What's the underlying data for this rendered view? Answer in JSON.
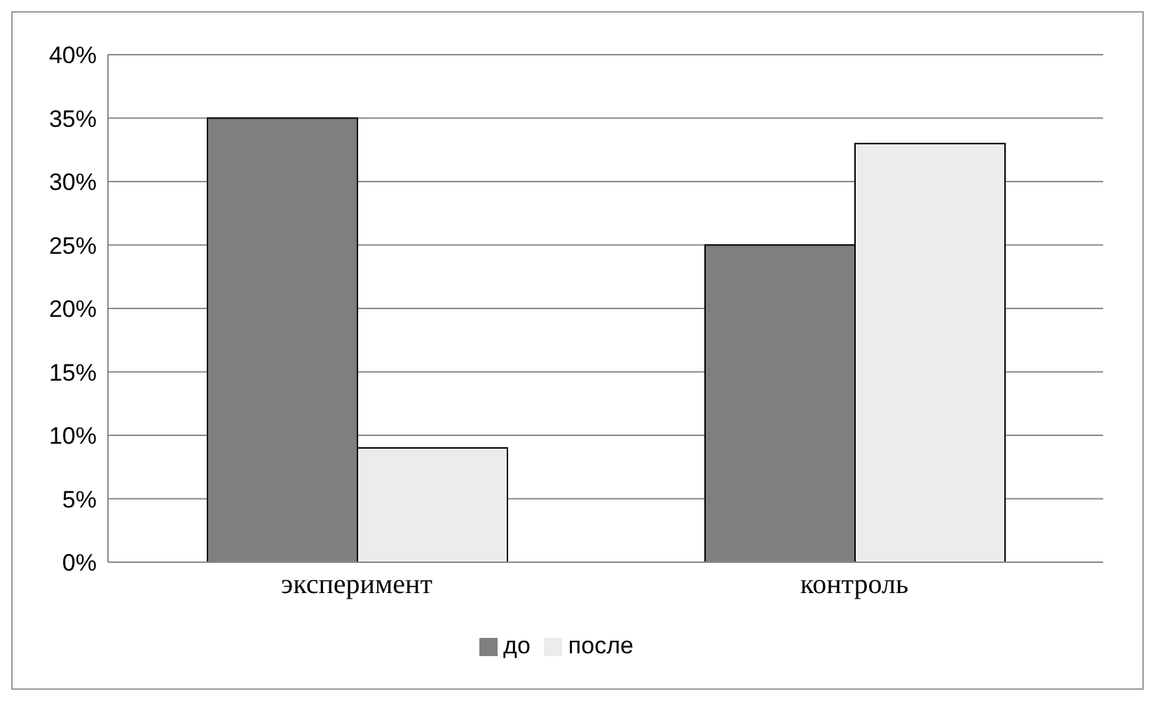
{
  "chart_data": {
    "type": "bar",
    "categories": [
      "эксперимент",
      "контроль"
    ],
    "series": [
      {
        "name": "до",
        "color": "#7f7f7f",
        "values": [
          35,
          25
        ]
      },
      {
        "name": "после",
        "color": "#ececec",
        "values": [
          9,
          33
        ]
      }
    ],
    "ylim": [
      0,
      40
    ],
    "yticks": [
      {
        "value": 0,
        "label": "0%"
      },
      {
        "value": 5,
        "label": "5%"
      },
      {
        "value": 10,
        "label": "10%"
      },
      {
        "value": 15,
        "label": "15%"
      },
      {
        "value": 20,
        "label": "20%"
      },
      {
        "value": 25,
        "label": "25%"
      },
      {
        "value": 30,
        "label": "30%"
      },
      {
        "value": 35,
        "label": "35%"
      },
      {
        "value": 40,
        "label": "40%"
      }
    ],
    "grid": "y",
    "legend": "bottom"
  }
}
